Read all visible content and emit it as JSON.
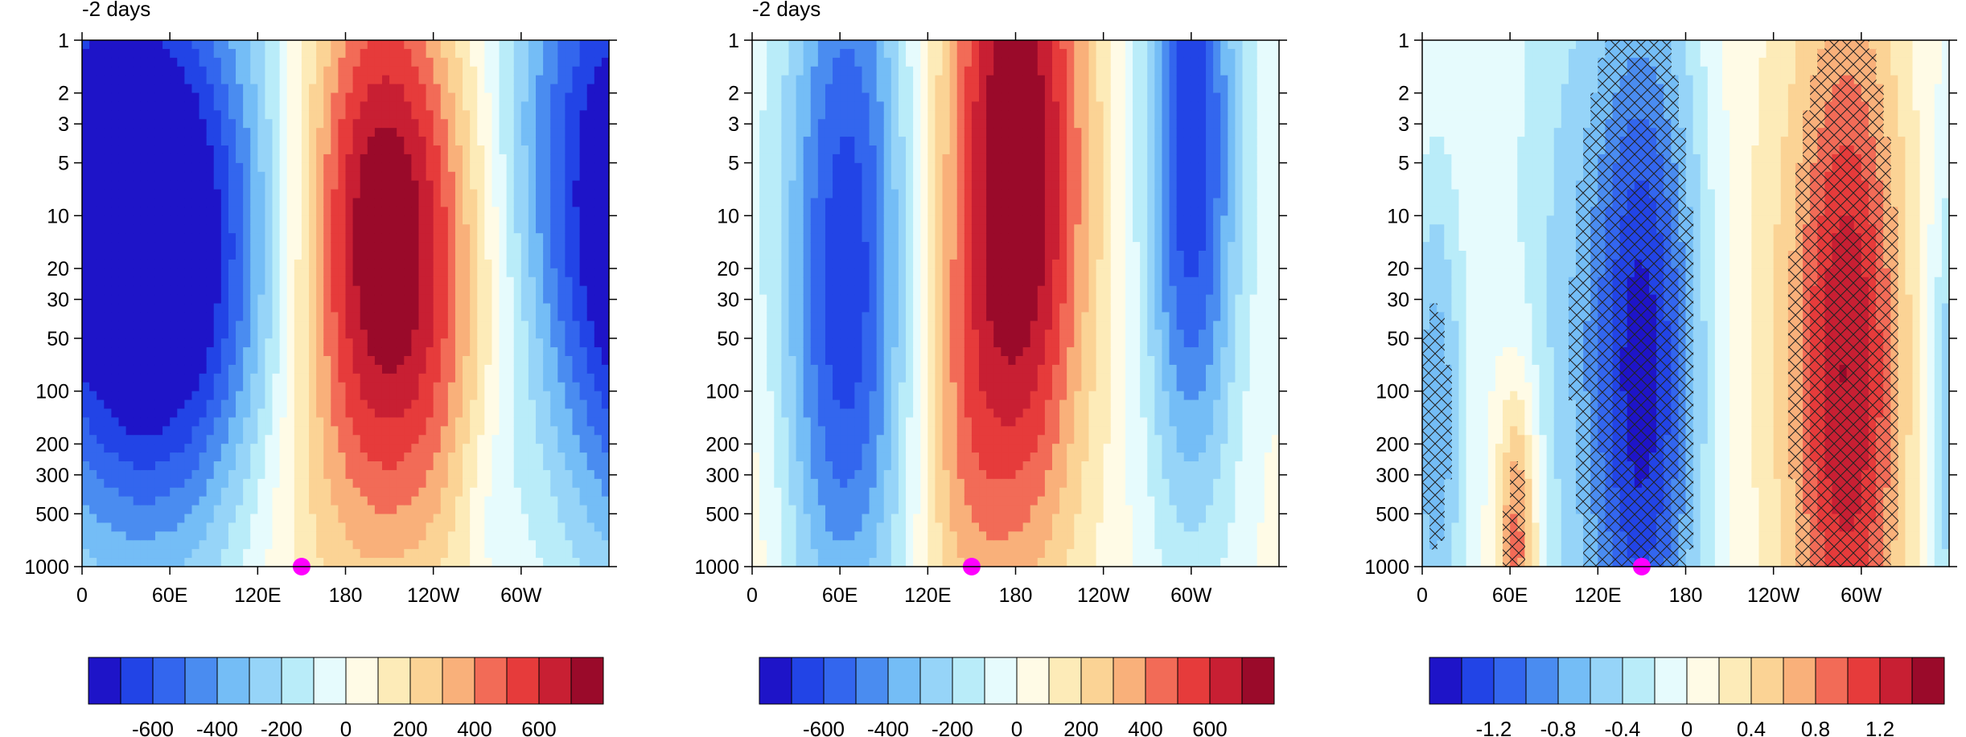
{
  "chart_data": [
    {
      "type": "heatmap",
      "title": "-2 days",
      "x_ticks": [
        "0",
        "60E",
        "120E",
        "180",
        "120W",
        "60W"
      ],
      "y_ticks": [
        "1",
        "2",
        "3",
        "5",
        "10",
        "20",
        "30",
        "50",
        "100",
        "200",
        "300",
        "500",
        "1000"
      ],
      "y_scale": "log",
      "y_reversed": true,
      "ylim": [
        1,
        1000
      ],
      "xlim": [
        0,
        360
      ],
      "marker": {
        "x": 150,
        "y": 1000,
        "color": "#ff00ff"
      },
      "colorbar": {
        "levels": [
          -800,
          -700,
          -600,
          -500,
          -400,
          -300,
          -200,
          -100,
          0,
          100,
          200,
          300,
          400,
          500,
          600,
          700,
          800
        ],
        "labels": [
          "-600",
          "-400",
          "-200",
          "0",
          "200",
          "400",
          "600"
        ],
        "label_values": [
          -600,
          -400,
          -200,
          0,
          200,
          400,
          600
        ]
      },
      "features": [
        {
          "x": 40,
          "y": 9,
          "amplitude": -700,
          "sx": 55,
          "sy": 1.3
        },
        {
          "x": 75,
          "y": 30,
          "amplitude": -380,
          "sx": 60,
          "sy": 1.1
        },
        {
          "x": 205,
          "y": 8,
          "amplitude": 650,
          "sx": 40,
          "sy": 1.1
        },
        {
          "x": 215,
          "y": 80,
          "amplitude": 300,
          "sx": 70,
          "sy": 1.1
        },
        {
          "x": 330,
          "y": 5,
          "amplitude": -300,
          "sx": 40,
          "sy": 1.4
        },
        {
          "x": 280,
          "y": 400,
          "amplitude": -120,
          "sx": 18,
          "sy": 0.5
        },
        {
          "x": 140,
          "y": 700,
          "amplitude": 70,
          "sx": 40,
          "sy": 0.6
        }
      ]
    },
    {
      "type": "heatmap",
      "title": "-2 days",
      "x_ticks": [
        "0",
        "60E",
        "120E",
        "180",
        "120W",
        "60W"
      ],
      "y_ticks": [
        "1",
        "2",
        "3",
        "5",
        "10",
        "20",
        "30",
        "50",
        "100",
        "200",
        "300",
        "500",
        "1000"
      ],
      "y_scale": "log",
      "y_reversed": true,
      "ylim": [
        1,
        1000
      ],
      "xlim": [
        0,
        360
      ],
      "marker": {
        "x": 150,
        "y": 1000,
        "color": "#ff00ff"
      },
      "colorbar": {
        "levels": [
          -800,
          -700,
          -600,
          -500,
          -400,
          -300,
          -200,
          -100,
          0,
          100,
          200,
          300,
          400,
          500,
          600,
          700,
          800
        ],
        "labels": [
          "-600",
          "-400",
          "-200",
          "0",
          "200",
          "400",
          "600"
        ],
        "label_values": [
          -600,
          -400,
          -200,
          0,
          200,
          400,
          600
        ]
      },
      "features": [
        {
          "x": 65,
          "y": 10,
          "amplitude": -600,
          "sx": 30,
          "sy": 1.5
        },
        {
          "x": 180,
          "y": 6,
          "amplitude": 850,
          "sx": 35,
          "sy": 1.6
        },
        {
          "x": 300,
          "y": 4,
          "amplitude": -700,
          "sx": 22,
          "sy": 1.4
        },
        {
          "x": 60,
          "y": 200,
          "amplitude": -150,
          "sx": 30,
          "sy": 1.0
        },
        {
          "x": 140,
          "y": 300,
          "amplitude": 150,
          "sx": 20,
          "sy": 0.8
        },
        {
          "x": 5,
          "y": 400,
          "amplitude": 80,
          "sx": 15,
          "sy": 0.7
        }
      ]
    },
    {
      "type": "heatmap",
      "x_ticks": [
        "0",
        "60E",
        "120E",
        "180",
        "120W",
        "60W"
      ],
      "y_ticks": [
        "1",
        "2",
        "3",
        "5",
        "10",
        "20",
        "30",
        "50",
        "100",
        "200",
        "300",
        "500",
        "1000"
      ],
      "y_scale": "log",
      "y_reversed": true,
      "ylim": [
        1,
        1000
      ],
      "xlim": [
        0,
        360
      ],
      "marker": {
        "x": 150,
        "y": 1000,
        "color": "#ff00ff"
      },
      "hatching": "cross-hatch over significant regions",
      "colorbar": {
        "levels": [
          -1.6,
          -1.4,
          -1.2,
          -1.0,
          -0.8,
          -0.6,
          -0.4,
          -0.2,
          0,
          0.2,
          0.4,
          0.6,
          0.8,
          1.0,
          1.2,
          1.4,
          1.6
        ],
        "labels": [
          "-1.2",
          "-0.8",
          "-0.4",
          "0",
          "0.4",
          "0.8",
          "1.2"
        ],
        "label_values": [
          -1.2,
          -0.8,
          -0.4,
          0,
          0.4,
          0.8,
          1.2
        ]
      },
      "features": [
        {
          "x": 150,
          "y": 80,
          "amplitude": -1.5,
          "sx": 28,
          "sy": 1.6
        },
        {
          "x": 290,
          "y": 80,
          "amplitude": 1.4,
          "sx": 28,
          "sy": 1.6
        },
        {
          "x": 8,
          "y": 150,
          "amplitude": -0.8,
          "sx": 14,
          "sy": 1.0
        },
        {
          "x": 65,
          "y": 700,
          "amplitude": 1.0,
          "sx": 10,
          "sy": 0.6
        },
        {
          "x": 225,
          "y": 20,
          "amplitude": 0.15,
          "sx": 25,
          "sy": 2.0
        },
        {
          "x": 90,
          "y": 20,
          "amplitude": -0.3,
          "sx": 25,
          "sy": 2.0
        }
      ]
    }
  ]
}
